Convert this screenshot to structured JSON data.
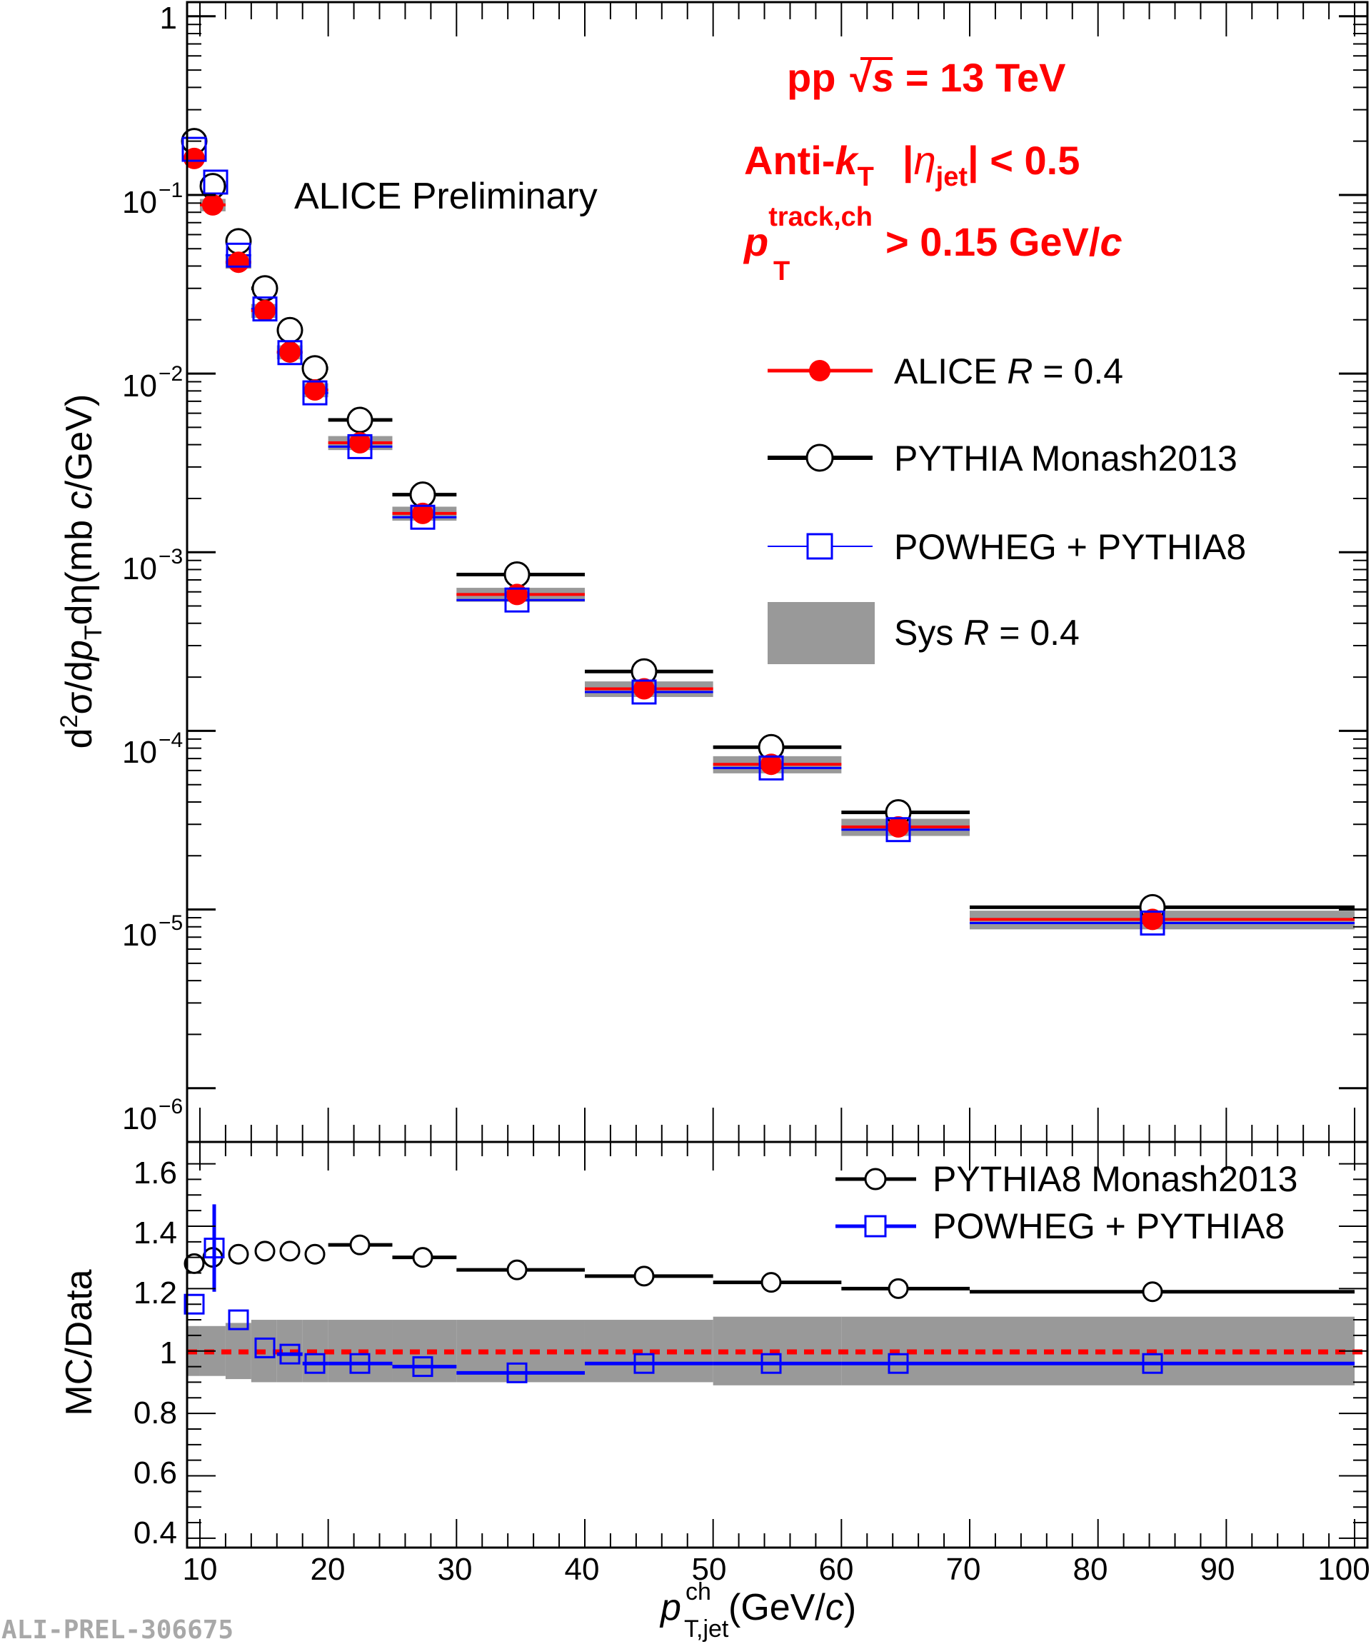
{
  "watermark": "ALI-PREL-306675",
  "top_panel": {
    "ylabel": {
      "d": "d",
      "sup": "2",
      "sigma": "σ/d",
      "p": "p",
      "sub": "T",
      "rest": "dη(mb ",
      "c": "c",
      "end": "/GeV)"
    },
    "ytick_labels": [
      {
        "base": "1",
        "exp": ""
      },
      {
        "base": "10",
        "exp": "−1"
      },
      {
        "base": "10",
        "exp": "−2"
      },
      {
        "base": "10",
        "exp": "−3"
      },
      {
        "base": "10",
        "exp": "−4"
      },
      {
        "base": "10",
        "exp": "−5"
      },
      {
        "base": "10",
        "exp": "−6"
      }
    ],
    "preliminary": "ALICE Preliminary",
    "ann_line1": {
      "pp": "pp",
      "sqrt": "√",
      "s": "s",
      "rest": " = 13 TeV"
    },
    "ann_line2": {
      "anti": "Anti-",
      "k": "k",
      "ksub": "T",
      "eta_open": "|",
      "eta": "η",
      "etasub": "jet",
      "eta_close": "| < 0.5"
    },
    "ann_line3": {
      "p": "p",
      "sup": "track,ch",
      "sub": "T",
      "rest": " > 0.15 GeV/",
      "c": "c"
    },
    "legend": [
      {
        "name": "ALICE",
        "italic": "R",
        "tail": " = 0.4",
        "color": "#ff0000",
        "marker": "filled-circle"
      },
      {
        "name": "PYTHIA Monash2013",
        "italic": "",
        "tail": "",
        "color": "#000000",
        "marker": "open-circle"
      },
      {
        "name": "POWHEG + PYTHIA8",
        "italic": "",
        "tail": "",
        "color": "#0000ff",
        "marker": "open-square"
      },
      {
        "name": "Sys",
        "italic": "R",
        "tail": " = 0.4",
        "color": "#999999",
        "marker": "box"
      }
    ]
  },
  "bottom_panel": {
    "ylabel": "MC/Data",
    "ytick_labels": [
      "1.6",
      "1.4",
      "1.2",
      "1",
      "0.8",
      "0.6",
      "0.4"
    ],
    "legend": [
      {
        "name": "PYTHIA8 Monash2013",
        "color": "#000000",
        "marker": "open-circle"
      },
      {
        "name": "POWHEG + PYTHIA8",
        "color": "#0000ff",
        "marker": "open-square"
      }
    ],
    "xtick_labels": [
      "10",
      "20",
      "30",
      "40",
      "50",
      "60",
      "70",
      "80",
      "90",
      "100"
    ],
    "xlabel": {
      "p": "p",
      "sup": "ch",
      "sub": "T,jet",
      "rest": " (GeV/",
      "c": "c",
      "end": ")"
    }
  },
  "chart_data": [
    {
      "type": "scatter",
      "title": "",
      "xlabel": "p_T,jet^ch (GeV/c)",
      "ylabel": "d2σ/dpTdη (mb c/GeV)",
      "yscale": "log",
      "xlim": [
        9,
        101
      ],
      "ylim": [
        5e-07,
        1.2
      ],
      "bin_edges": [
        9,
        10,
        12,
        14,
        16,
        18,
        20,
        25,
        30,
        40,
        50,
        60,
        70,
        100
      ],
      "series": [
        {
          "name": "ALICE R = 0.4",
          "color": "#ff0000",
          "values": [
            0.16,
            0.088,
            0.042,
            0.0225,
            0.0132,
            0.0081,
            0.0041,
            0.00165,
            0.00058,
            0.000172,
            6.5e-05,
            2.9e-05,
            8.8e-06
          ]
        },
        {
          "name": "PYTHIA Monash2013",
          "color": "#000000",
          "values": [
            0.2,
            0.112,
            0.055,
            0.03,
            0.0175,
            0.0107,
            0.0055,
            0.0021,
            0.00075,
            0.000215,
            8.1e-05,
            3.5e-05,
            1.03e-05
          ]
        },
        {
          "name": "POWHEG + PYTHIA8",
          "color": "#0000ff",
          "values": [
            0.18,
            0.118,
            0.046,
            0.023,
            0.0131,
            0.0078,
            0.0039,
            0.00157,
            0.00054,
            0.000165,
            6.2e-05,
            2.8e-05,
            8.4e-06
          ]
        }
      ],
      "sys_band": {
        "name": "Sys R = 0.4",
        "rel_low": [
          0.08,
          0.08,
          0.08,
          0.09,
          0.09,
          0.09,
          0.09,
          0.09,
          0.09,
          0.1,
          0.11,
          0.11,
          0.12
        ],
        "rel_high": [
          0.08,
          0.08,
          0.08,
          0.09,
          0.09,
          0.09,
          0.09,
          0.09,
          0.09,
          0.1,
          0.11,
          0.11,
          0.12
        ]
      }
    },
    {
      "type": "scatter",
      "title": "",
      "xlabel": "p_T,jet^ch (GeV/c)",
      "ylabel": "MC/Data",
      "xlim": [
        9,
        101
      ],
      "ylim": [
        0.37,
        1.67
      ],
      "bin_edges": [
        9,
        10,
        12,
        14,
        16,
        18,
        20,
        25,
        30,
        40,
        50,
        60,
        70,
        100
      ],
      "series": [
        {
          "name": "PYTHIA8 Monash2013",
          "color": "#000000",
          "values": [
            1.28,
            1.3,
            1.31,
            1.32,
            1.32,
            1.31,
            1.34,
            1.3,
            1.26,
            1.24,
            1.22,
            1.2,
            1.19
          ]
        },
        {
          "name": "POWHEG + PYTHIA8",
          "color": "#0000ff",
          "values": [
            1.15,
            1.33,
            1.1,
            1.01,
            0.99,
            0.96,
            0.96,
            0.95,
            0.93,
            0.96,
            0.96,
            0.96,
            0.96
          ],
          "errors": [
            0.0,
            0.14,
            0.0,
            0.0,
            0.0,
            0.0,
            0.0,
            0.0,
            0.0,
            0.0,
            0.0,
            0.0,
            0.0
          ]
        }
      ],
      "reference_line": 1.0,
      "sys_band": {
        "center": 1.0,
        "half_width": [
          0.08,
          0.08,
          0.09,
          0.1,
          0.1,
          0.1,
          0.1,
          0.1,
          0.1,
          0.1,
          0.11,
          0.11,
          0.11
        ]
      }
    }
  ]
}
